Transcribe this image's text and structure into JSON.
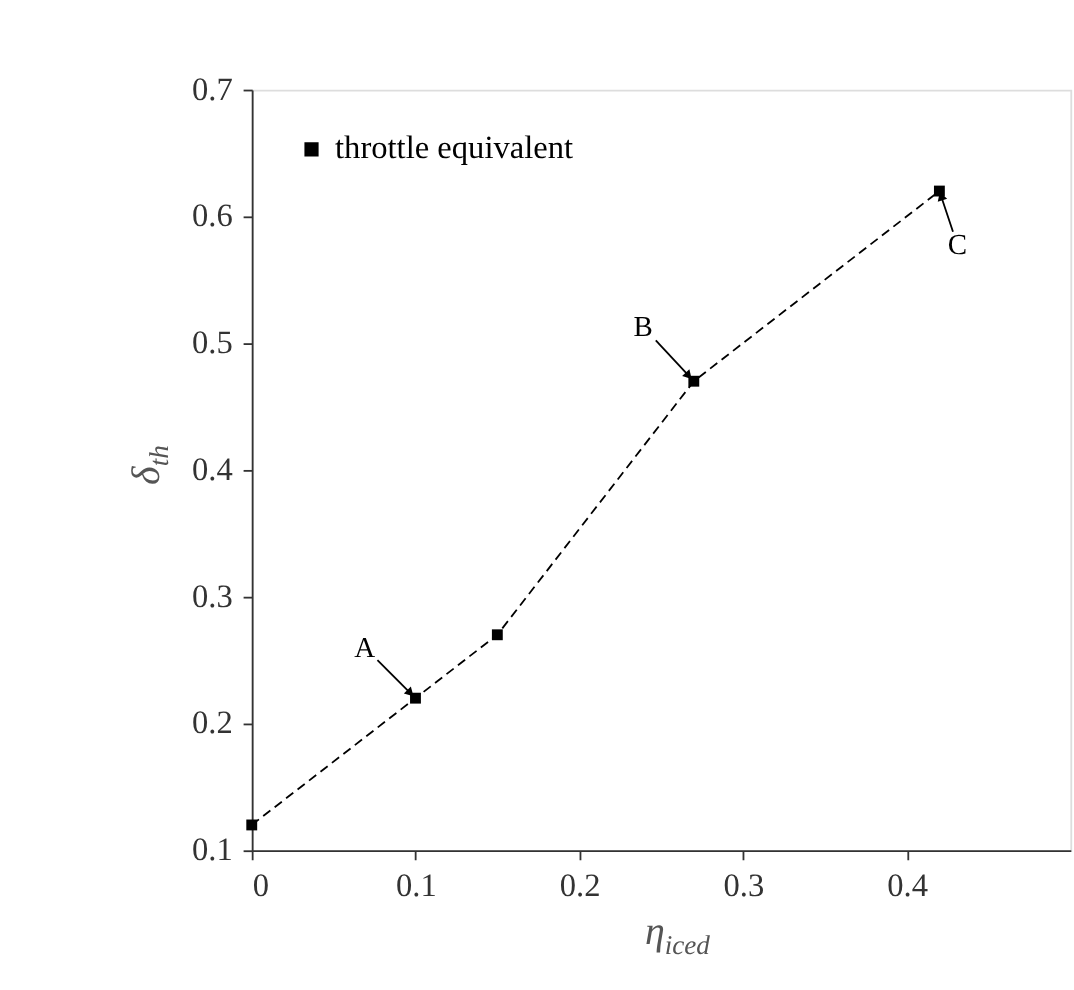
{
  "chart_data": {
    "type": "line",
    "xlabel": "η$_{iced}$",
    "ylabel": "δ$_{th}$",
    "x": [
      0,
      0.1,
      0.15,
      0.27,
      0.42
    ],
    "series": [
      {
        "name": "throttle equivalent",
        "color": "#000000",
        "values": [
          0.12,
          0.22,
          0.27,
          0.47,
          0.62
        ],
        "marker": "square",
        "line_style": "dashed"
      }
    ],
    "xlim": [
      0,
      0.5
    ],
    "xticks": [
      0,
      0.1,
      0.2,
      0.3,
      0.4
    ],
    "ylim": [
      0.1,
      0.7
    ],
    "yticks": [
      0.1,
      0.2,
      0.3,
      0.4,
      0.5,
      0.6,
      0.7
    ],
    "grid": false,
    "legend": "top left",
    "annotations": [
      {
        "text": "A",
        "x": 0.1,
        "y": 0.22
      },
      {
        "text": "B",
        "x": 0.27,
        "y": 0.47
      },
      {
        "text": "C",
        "x": 0.42,
        "y": 0.62
      }
    ]
  }
}
